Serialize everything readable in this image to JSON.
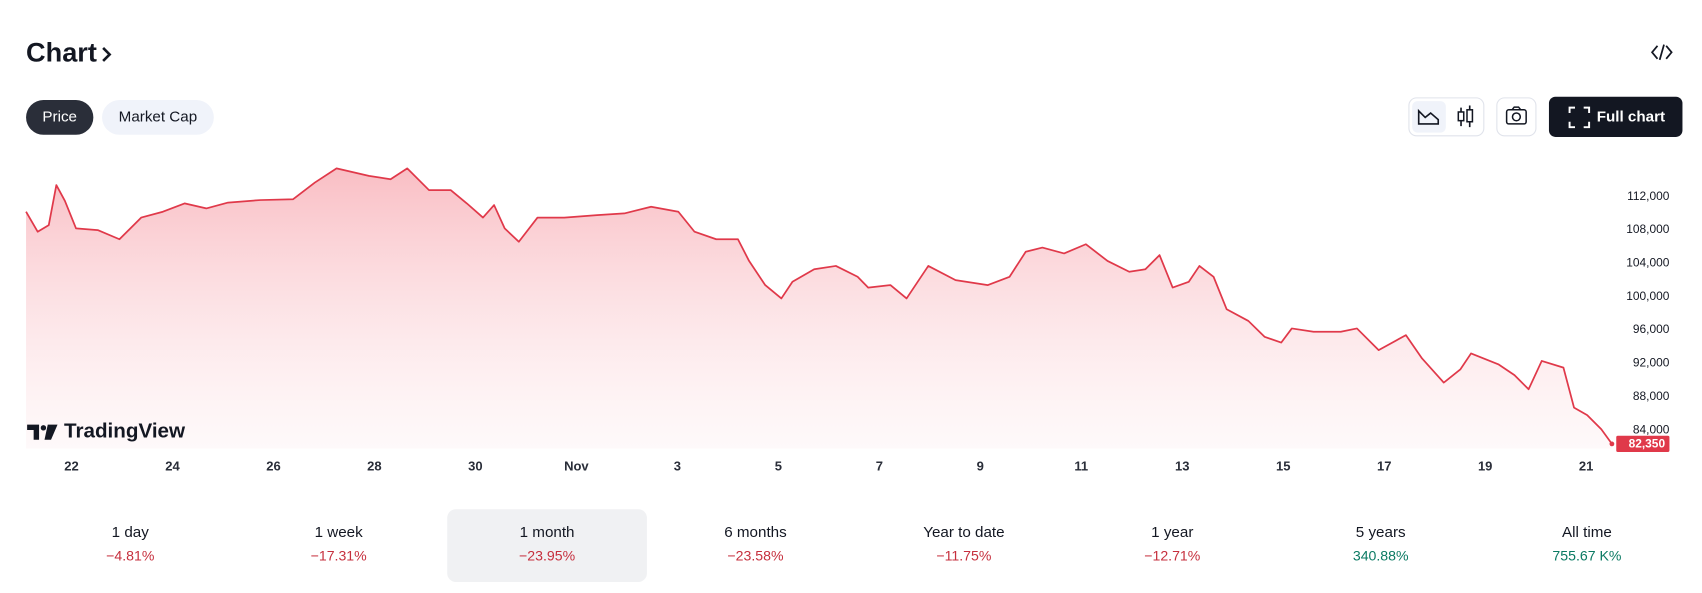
{
  "header": {
    "title": "Chart"
  },
  "tabs": {
    "items": [
      "Price",
      "Market Cap"
    ],
    "selected": 0
  },
  "buttons": {
    "full_chart": "Full chart"
  },
  "brand": "TradingView",
  "chart_data": {
    "type": "area",
    "color": "#e0394a",
    "x": [
      21.1,
      21.33,
      21.55,
      21.7,
      21.87,
      22.09,
      22.52,
      22.95,
      23.38,
      23.81,
      24.24,
      24.67,
      25.1,
      25.74,
      26.39,
      26.82,
      27.25,
      27.89,
      28.32,
      28.65,
      29.08,
      29.51,
      29.83,
      30.15,
      30.37,
      30.58,
      30.86,
      31.23,
      31.76,
      32.41,
      32.95,
      33.48,
      34.02,
      34.34,
      34.77,
      35.2,
      35.42,
      35.74,
      36.06,
      36.28,
      36.71,
      37.14,
      37.57,
      37.78,
      38.22,
      38.54,
      38.97,
      39.51,
      40.15,
      40.58,
      40.9,
      41.23,
      41.66,
      42.09,
      42.52,
      42.95,
      43.27,
      43.55,
      43.81,
      44.13,
      44.34,
      44.62,
      44.88,
      45.31,
      45.63,
      45.96,
      46.17,
      46.6,
      47.14,
      47.46,
      47.89,
      48.43,
      48.75,
      49.18,
      49.51,
      49.72,
      50.26,
      50.58,
      50.86,
      51.12,
      51.55,
      51.76,
      52.02,
      52.3,
      52.51
    ],
    "values": [
      110200,
      107800,
      108600,
      113400,
      111500,
      108200,
      108000,
      106900,
      109500,
      110200,
      111200,
      110600,
      111300,
      111600,
      111700,
      113700,
      115400,
      114500,
      114100,
      115400,
      112800,
      112800,
      111200,
      109500,
      111000,
      108200,
      106600,
      109500,
      109500,
      109800,
      110000,
      110800,
      110200,
      107800,
      106900,
      106900,
      104300,
      101400,
      99800,
      101800,
      103300,
      103700,
      102400,
      101100,
      101400,
      99800,
      103700,
      102000,
      101400,
      102400,
      105400,
      105900,
      105200,
      106300,
      104300,
      103000,
      103300,
      105000,
      101100,
      101800,
      103700,
      102400,
      98500,
      97100,
      95200,
      94500,
      96200,
      95800,
      95800,
      96200,
      93600,
      95400,
      92600,
      89700,
      91300,
      93200,
      91900,
      90600,
      88900,
      92300,
      91500,
      86700,
      85800,
      84100,
      82350
    ],
    "xlim": [
      21.1,
      52.51
    ],
    "ylim": [
      81800,
      116700
    ],
    "xticks": [
      22,
      24,
      26,
      28,
      30,
      {
        "value": 32,
        "label": "Nov"
      },
      {
        "value": 34,
        "label": "3"
      },
      {
        "value": 36,
        "label": "5"
      },
      {
        "value": 38,
        "label": "7"
      },
      {
        "value": 40,
        "label": "9"
      },
      {
        "value": 42,
        "label": "11"
      },
      {
        "value": 44,
        "label": "13"
      },
      {
        "value": 46,
        "label": "15"
      },
      {
        "value": 48,
        "label": "17"
      },
      {
        "value": 50,
        "label": "19"
      },
      {
        "value": 52,
        "label": "21"
      }
    ],
    "yticks": [
      {
        "value": 84000,
        "label": "84,000"
      },
      {
        "value": 88000,
        "label": "88,000"
      },
      {
        "value": 92000,
        "label": "92,000"
      },
      {
        "value": 96000,
        "label": "96,000"
      },
      {
        "value": 100000,
        "label": "100,000"
      },
      {
        "value": 104000,
        "label": "104,000"
      },
      {
        "value": 108000,
        "label": "108,000"
      },
      {
        "value": 112000,
        "label": "112,000"
      }
    ],
    "last_price": {
      "value": 82350,
      "label": "82,350"
    }
  },
  "periods": {
    "selected": 2,
    "items": [
      {
        "label": "1 day",
        "change": "−4.81%",
        "color": "#c62f3d"
      },
      {
        "label": "1 week",
        "change": "−17.31%",
        "color": "#c62f3d"
      },
      {
        "label": "1 month",
        "change": "−23.95%",
        "color": "#c62f3d"
      },
      {
        "label": "6 months",
        "change": "−23.58%",
        "color": "#c62f3d"
      },
      {
        "label": "Year to date",
        "change": "−11.75%",
        "color": "#c62f3d"
      },
      {
        "label": "1 year",
        "change": "−12.71%",
        "color": "#c62f3d"
      },
      {
        "label": "5 years",
        "change": "340.88%",
        "color": "#0b7a63"
      },
      {
        "label": "All time",
        "change": "755.67 K%",
        "color": "#0b7a63"
      }
    ]
  }
}
